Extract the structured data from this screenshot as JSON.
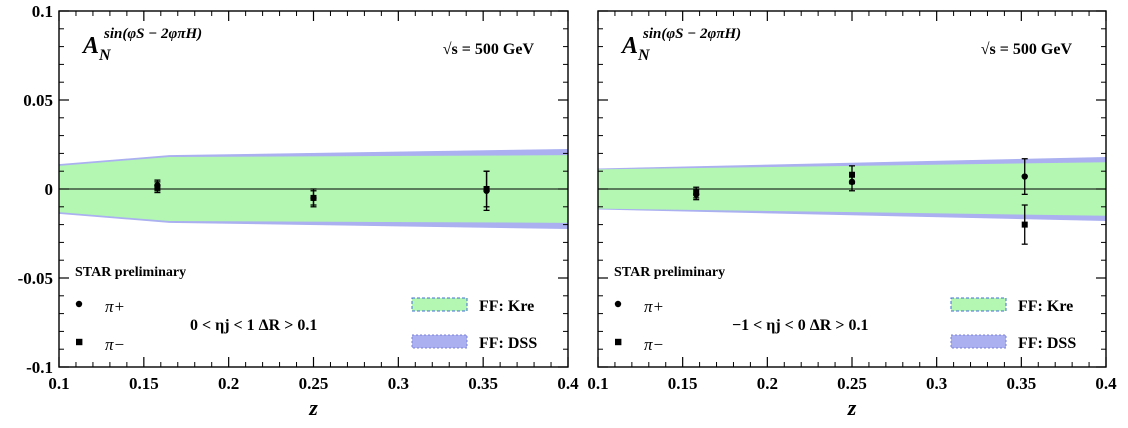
{
  "chart_data": [
    {
      "type": "scatter",
      "panel": "left",
      "title_main": "A",
      "title_sub": "N",
      "title_sup": "sin(φS − 2φπH)",
      "energy": "√s = 500 GeV",
      "star": "STAR preliminary",
      "kinematics": "0 < ηj < 1    ΔR > 0.1",
      "xlabel": "z",
      "xlim": [
        0.1,
        0.4
      ],
      "ylim": [
        -0.1,
        0.1
      ],
      "xticks": [
        "0.1",
        "0.15",
        "0.2",
        "0.25",
        "0.3",
        "0.35",
        "0.4"
      ],
      "yticks": [
        "0.1",
        "0.05",
        "0",
        "-0.05",
        "-0.1"
      ],
      "legend_points": [
        {
          "name": "π+",
          "marker": "circle"
        },
        {
          "name": "π−",
          "marker": "square"
        }
      ],
      "legend_bands": [
        {
          "name": "FF: Kre",
          "color": "#b3f7b3"
        },
        {
          "name": "FF: DSS",
          "color": "#aab0f0"
        }
      ],
      "bands": {
        "dss": {
          "x": [
            0.1,
            0.165,
            0.4
          ],
          "upper": [
            0.014,
            0.019,
            0.0225
          ],
          "lower": [
            -0.014,
            -0.019,
            -0.0225
          ]
        },
        "kre": {
          "x": [
            0.1,
            0.165,
            0.4
          ],
          "upper": [
            0.013,
            0.018,
            0.019
          ],
          "lower": [
            -0.013,
            -0.018,
            -0.019
          ]
        }
      },
      "series": [
        {
          "name": "π+",
          "marker": "circle",
          "x": [
            0.158,
            0.25,
            0.352
          ],
          "y": [
            0.002,
            -0.005,
            -0.001
          ],
          "err": [
            0.003,
            0.005,
            0.011
          ]
        },
        {
          "name": "π−",
          "marker": "square",
          "x": [
            0.158,
            0.25,
            0.352
          ],
          "y": [
            0.001,
            -0.005,
            0.0
          ],
          "err": [
            0.003,
            0.004,
            0.01
          ]
        }
      ]
    },
    {
      "type": "scatter",
      "panel": "right",
      "title_main": "A",
      "title_sub": "N",
      "title_sup": "sin(φS − 2φπH)",
      "energy": "√s = 500 GeV",
      "star": "STAR preliminary",
      "kinematics": "−1 < ηj < 0    ΔR > 0.1",
      "xlabel": "z",
      "xlim": [
        0.1,
        0.4
      ],
      "ylim": [
        -0.1,
        0.1
      ],
      "xticks": [
        "0.1",
        "0.15",
        "0.2",
        "0.25",
        "0.3",
        "0.35",
        "0.4"
      ],
      "yticks": [],
      "legend_points": [
        {
          "name": "π+",
          "marker": "circle"
        },
        {
          "name": "π−",
          "marker": "square"
        }
      ],
      "legend_bands": [
        {
          "name": "FF: Kre",
          "color": "#b3f7b3"
        },
        {
          "name": "FF: DSS",
          "color": "#aab0f0"
        }
      ],
      "bands": {
        "dss": {
          "x": [
            0.1,
            0.4
          ],
          "upper": [
            0.0115,
            0.018
          ],
          "lower": [
            -0.0115,
            -0.018
          ]
        },
        "kre": {
          "x": [
            0.1,
            0.4
          ],
          "upper": [
            0.011,
            0.015
          ],
          "lower": [
            -0.011,
            -0.015
          ]
        }
      },
      "series": [
        {
          "name": "π+",
          "marker": "circle",
          "x": [
            0.158,
            0.25,
            0.352
          ],
          "y": [
            -0.003,
            0.004,
            0.007
          ],
          "err": [
            0.003,
            0.005,
            0.01
          ]
        },
        {
          "name": "π−",
          "marker": "square",
          "x": [
            0.158,
            0.25,
            0.352
          ],
          "y": [
            -0.002,
            0.008,
            -0.02
          ],
          "err": [
            0.003,
            0.005,
            0.011
          ]
        }
      ]
    }
  ]
}
